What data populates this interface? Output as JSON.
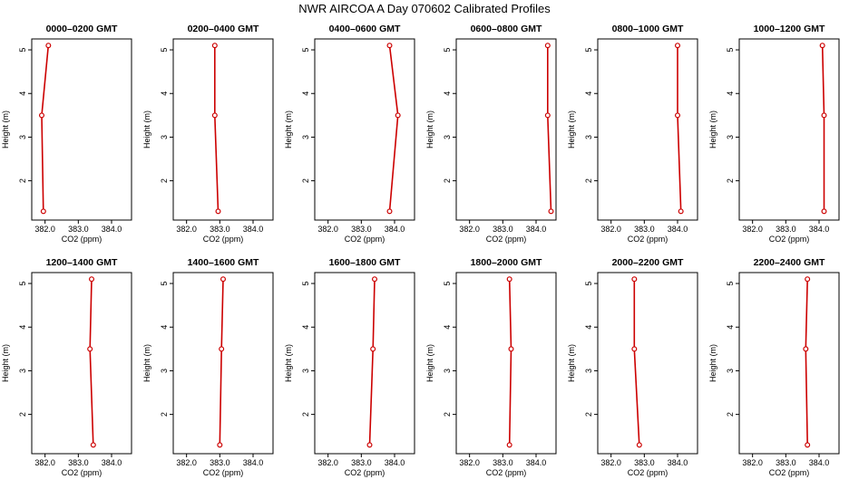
{
  "title": "NWR AIRCOA A  Day 070602  Calibrated Profiles",
  "chart_data": [
    {
      "type": "line",
      "title": "0000–0200 GMT",
      "xlabel": "CO2 (ppm)",
      "ylabel": "Height (m)",
      "xlim": [
        381.6,
        384.6
      ],
      "ylim": [
        1.1,
        5.25
      ],
      "xticks": [
        "382.0",
        "383.0",
        "384.0"
      ],
      "yticks": [
        "2",
        "3",
        "4",
        "5"
      ],
      "series": [
        {
          "x": [
            381.95,
            381.9,
            382.1
          ],
          "y": [
            1.3,
            3.5,
            5.1
          ]
        }
      ]
    },
    {
      "type": "line",
      "title": "0200–0400 GMT",
      "xlabel": "CO2 (ppm)",
      "ylabel": "Height (m)",
      "xlim": [
        381.6,
        384.6
      ],
      "ylim": [
        1.1,
        5.25
      ],
      "xticks": [
        "382.0",
        "383.0",
        "384.0"
      ],
      "yticks": [
        "2",
        "3",
        "4",
        "5"
      ],
      "series": [
        {
          "x": [
            382.95,
            382.85,
            382.85
          ],
          "y": [
            1.3,
            3.5,
            5.1
          ]
        }
      ]
    },
    {
      "type": "line",
      "title": "0400–0600 GMT",
      "xlabel": "CO2 (ppm)",
      "ylabel": "Height (m)",
      "xlim": [
        381.6,
        384.6
      ],
      "ylim": [
        1.1,
        5.25
      ],
      "xticks": [
        "382.0",
        "383.0",
        "384.0"
      ],
      "yticks": [
        "2",
        "3",
        "4",
        "5"
      ],
      "series": [
        {
          "x": [
            383.85,
            384.1,
            383.85
          ],
          "y": [
            1.3,
            3.5,
            5.1
          ]
        }
      ]
    },
    {
      "type": "line",
      "title": "0600–0800 GMT",
      "xlabel": "CO2 (ppm)",
      "ylabel": "Height (m)",
      "xlim": [
        381.6,
        384.6
      ],
      "ylim": [
        1.1,
        5.25
      ],
      "xticks": [
        "382.0",
        "383.0",
        "384.0"
      ],
      "yticks": [
        "2",
        "3",
        "4",
        "5"
      ],
      "series": [
        {
          "x": [
            384.45,
            384.35,
            384.35
          ],
          "y": [
            1.3,
            3.5,
            5.1
          ]
        }
      ]
    },
    {
      "type": "line",
      "title": "0800–1000 GMT",
      "xlabel": "CO2 (ppm)",
      "ylabel": "Height (m)",
      "xlim": [
        381.6,
        384.6
      ],
      "ylim": [
        1.1,
        5.25
      ],
      "xticks": [
        "382.0",
        "383.0",
        "384.0"
      ],
      "yticks": [
        "2",
        "3",
        "4",
        "5"
      ],
      "series": [
        {
          "x": [
            384.1,
            384.0,
            384.0
          ],
          "y": [
            1.3,
            3.5,
            5.1
          ]
        }
      ]
    },
    {
      "type": "line",
      "title": "1000–1200 GMT",
      "xlabel": "CO2 (ppm)",
      "ylabel": "Height (m)",
      "xlim": [
        381.6,
        384.6
      ],
      "ylim": [
        1.1,
        5.25
      ],
      "xticks": [
        "382.0",
        "383.0",
        "384.0"
      ],
      "yticks": [
        "2",
        "3",
        "4",
        "5"
      ],
      "series": [
        {
          "x": [
            384.15,
            384.15,
            384.1
          ],
          "y": [
            1.3,
            3.5,
            5.1
          ]
        }
      ]
    },
    {
      "type": "line",
      "title": "1200–1400 GMT",
      "xlabel": "CO2 (ppm)",
      "ylabel": "Height (m)",
      "xlim": [
        381.6,
        384.6
      ],
      "ylim": [
        1.1,
        5.25
      ],
      "xticks": [
        "382.0",
        "383.0",
        "384.0"
      ],
      "yticks": [
        "2",
        "3",
        "4",
        "5"
      ],
      "series": [
        {
          "x": [
            383.45,
            383.35,
            383.4
          ],
          "y": [
            1.3,
            3.5,
            5.1
          ]
        }
      ]
    },
    {
      "type": "line",
      "title": "1400–1600 GMT",
      "xlabel": "CO2 (ppm)",
      "ylabel": "Height (m)",
      "xlim": [
        381.6,
        384.6
      ],
      "ylim": [
        1.1,
        5.25
      ],
      "xticks": [
        "382.0",
        "383.0",
        "384.0"
      ],
      "yticks": [
        "2",
        "3",
        "4",
        "5"
      ],
      "series": [
        {
          "x": [
            383.0,
            383.05,
            383.1
          ],
          "y": [
            1.3,
            3.5,
            5.1
          ]
        }
      ]
    },
    {
      "type": "line",
      "title": "1600–1800 GMT",
      "xlabel": "CO2 (ppm)",
      "ylabel": "Height (m)",
      "xlim": [
        381.6,
        384.6
      ],
      "ylim": [
        1.1,
        5.25
      ],
      "xticks": [
        "382.0",
        "383.0",
        "384.0"
      ],
      "yticks": [
        "2",
        "3",
        "4",
        "5"
      ],
      "series": [
        {
          "x": [
            383.25,
            383.35,
            383.4
          ],
          "y": [
            1.3,
            3.5,
            5.1
          ]
        }
      ]
    },
    {
      "type": "line",
      "title": "1800–2000 GMT",
      "xlabel": "CO2 (ppm)",
      "ylabel": "Height (m)",
      "xlim": [
        381.6,
        384.6
      ],
      "ylim": [
        1.1,
        5.25
      ],
      "xticks": [
        "382.0",
        "383.0",
        "384.0"
      ],
      "yticks": [
        "2",
        "3",
        "4",
        "5"
      ],
      "series": [
        {
          "x": [
            383.2,
            383.25,
            383.2
          ],
          "y": [
            1.3,
            3.5,
            5.1
          ]
        }
      ]
    },
    {
      "type": "line",
      "title": "2000–2200 GMT",
      "xlabel": "CO2 (ppm)",
      "ylabel": "Height (m)",
      "xlim": [
        381.6,
        384.6
      ],
      "ylim": [
        1.1,
        5.25
      ],
      "xticks": [
        "382.0",
        "383.0",
        "384.0"
      ],
      "yticks": [
        "2",
        "3",
        "4",
        "5"
      ],
      "series": [
        {
          "x": [
            382.85,
            382.7,
            382.7
          ],
          "y": [
            1.3,
            3.5,
            5.1
          ]
        }
      ]
    },
    {
      "type": "line",
      "title": "2200–2400 GMT",
      "xlabel": "CO2 (ppm)",
      "ylabel": "Height (m)",
      "xlim": [
        381.6,
        384.6
      ],
      "ylim": [
        1.1,
        5.25
      ],
      "xticks": [
        "382.0",
        "383.0",
        "384.0"
      ],
      "yticks": [
        "2",
        "3",
        "4",
        "5"
      ],
      "series": [
        {
          "x": [
            383.65,
            383.6,
            383.65
          ],
          "y": [
            1.3,
            3.5,
            5.1
          ]
        }
      ]
    }
  ],
  "colors": {
    "series_line": "#cc0000",
    "axes": "#000000",
    "background": "#ffffff"
  }
}
